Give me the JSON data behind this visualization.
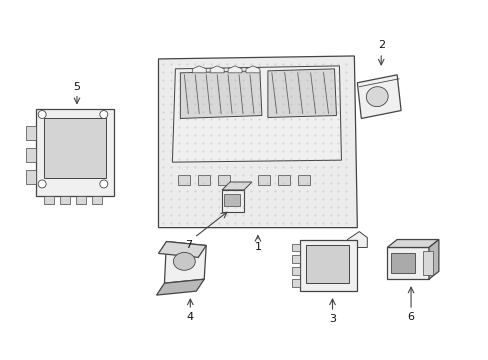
{
  "background_color": "#ffffff",
  "fig_width": 4.89,
  "fig_height": 3.6,
  "dpi": 100,
  "line_color": "#444444",
  "fill_light": "#f0f0f0",
  "fill_mid": "#d8d8d8",
  "fill_dark": "#b8b8b8",
  "fill_dot": "#e8e8e8",
  "label_fontsize": 8,
  "label_color": "#111111"
}
